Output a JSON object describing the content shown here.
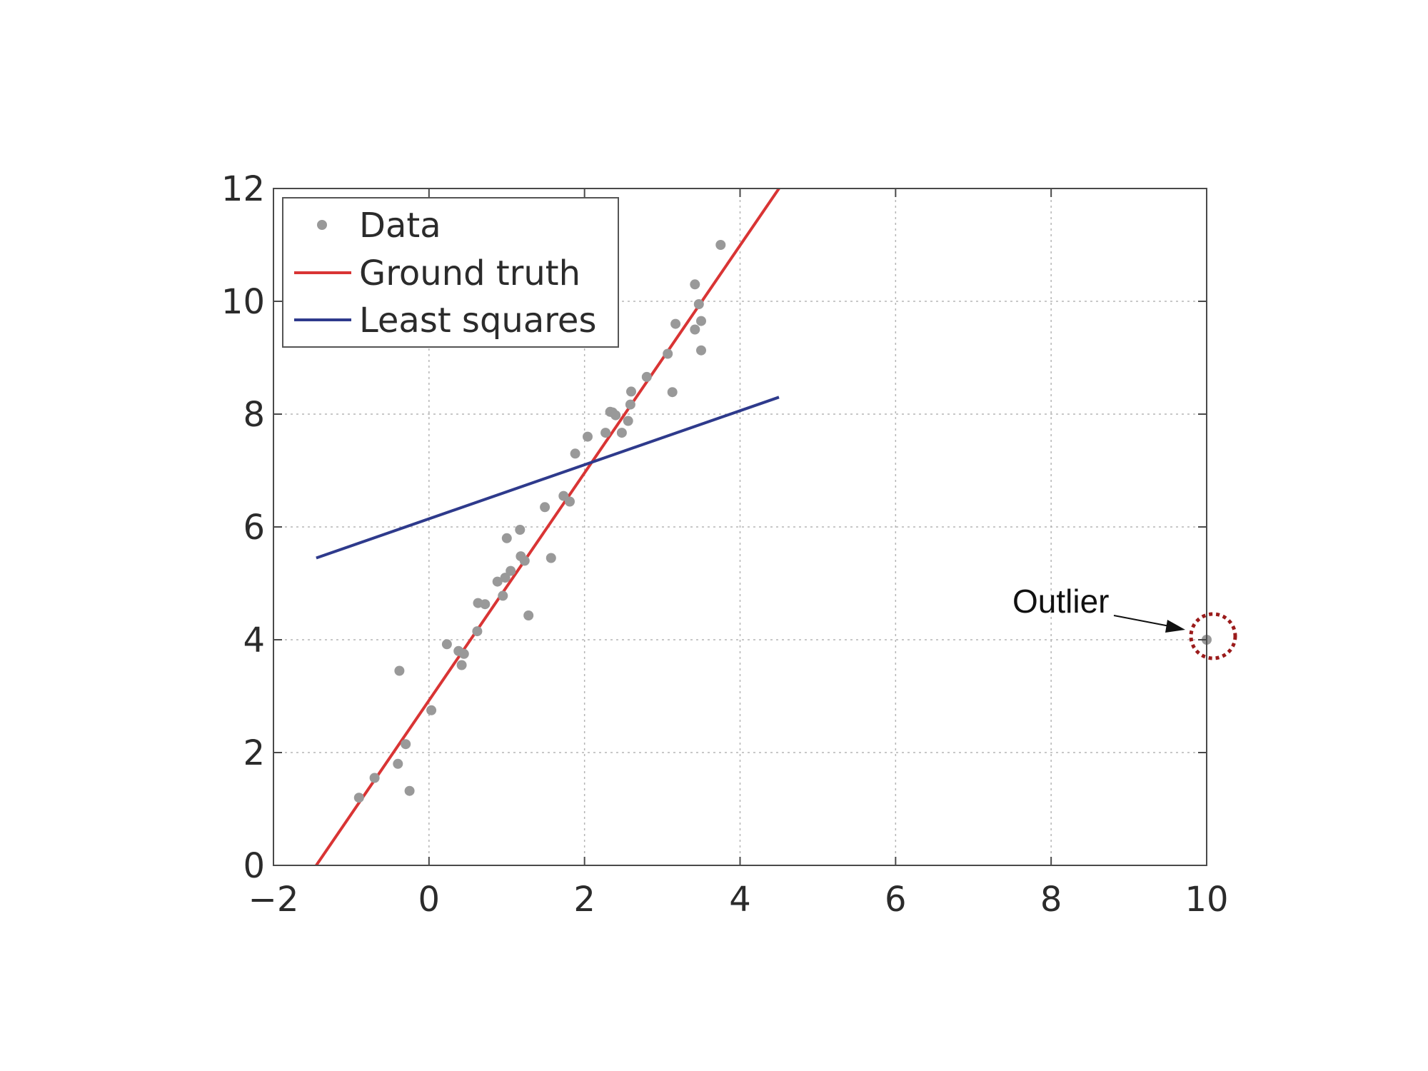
{
  "chart_data": {
    "type": "scatter",
    "title": "",
    "xlabel": "",
    "ylabel": "",
    "xlim": [
      -2,
      10
    ],
    "ylim": [
      0,
      12
    ],
    "x_ticks": [
      {
        "value": -2,
        "label": "−2"
      },
      {
        "value": 0,
        "label": "0"
      },
      {
        "value": 2,
        "label": "2"
      },
      {
        "value": 4,
        "label": "4"
      },
      {
        "value": 6,
        "label": "6"
      },
      {
        "value": 8,
        "label": "8"
      },
      {
        "value": 10,
        "label": "10"
      }
    ],
    "y_ticks": [
      {
        "value": 0,
        "label": "0"
      },
      {
        "value": 2,
        "label": "2"
      },
      {
        "value": 4,
        "label": "4"
      },
      {
        "value": 6,
        "label": "6"
      },
      {
        "value": 8,
        "label": "8"
      },
      {
        "value": 10,
        "label": "10"
      },
      {
        "value": 12,
        "label": "12"
      }
    ],
    "grid": true,
    "legend_position": "top-left",
    "series": [
      {
        "name": "Data",
        "kind": "scatter",
        "color": "#999999",
        "points": [
          [
            -0.9,
            1.2
          ],
          [
            -0.7,
            1.55
          ],
          [
            -0.4,
            1.8
          ],
          [
            -0.3,
            2.15
          ],
          [
            -0.25,
            1.32
          ],
          [
            -0.38,
            3.45
          ],
          [
            0.03,
            2.75
          ],
          [
            0.23,
            3.92
          ],
          [
            0.38,
            3.8
          ],
          [
            0.42,
            3.55
          ],
          [
            0.45,
            3.75
          ],
          [
            0.62,
            4.15
          ],
          [
            0.63,
            4.65
          ],
          [
            0.72,
            4.63
          ],
          [
            0.88,
            5.03
          ],
          [
            0.95,
            4.78
          ],
          [
            0.98,
            5.1
          ],
          [
            1.0,
            5.8
          ],
          [
            1.05,
            5.22
          ],
          [
            1.17,
            5.95
          ],
          [
            1.18,
            5.48
          ],
          [
            1.23,
            5.4
          ],
          [
            1.28,
            4.43
          ],
          [
            1.57,
            5.45
          ],
          [
            1.49,
            6.35
          ],
          [
            1.73,
            6.55
          ],
          [
            1.81,
            6.45
          ],
          [
            1.88,
            7.3
          ],
          [
            2.04,
            7.6
          ],
          [
            2.27,
            7.67
          ],
          [
            2.33,
            8.04
          ],
          [
            2.36,
            8.03
          ],
          [
            2.4,
            7.98
          ],
          [
            2.48,
            7.67
          ],
          [
            2.56,
            7.88
          ],
          [
            2.59,
            8.17
          ],
          [
            2.6,
            8.4
          ],
          [
            2.8,
            8.66
          ],
          [
            3.07,
            9.07
          ],
          [
            3.13,
            8.39
          ],
          [
            3.17,
            9.6
          ],
          [
            3.42,
            10.3
          ],
          [
            3.42,
            9.5
          ],
          [
            3.47,
            9.95
          ],
          [
            3.5,
            9.65
          ],
          [
            3.5,
            9.13
          ],
          [
            3.75,
            11.0
          ],
          [
            10.0,
            4.0
          ]
        ]
      },
      {
        "name": "Ground truth",
        "kind": "line",
        "color": "#d93434",
        "points": [
          [
            -1.45,
            0.0
          ],
          [
            4.5,
            12.0
          ]
        ]
      },
      {
        "name": "Least squares",
        "kind": "line",
        "color": "#2e3a8c",
        "points": [
          [
            -1.45,
            5.45
          ],
          [
            4.5,
            8.3
          ]
        ]
      }
    ],
    "annotations": [
      {
        "text": "Outlier",
        "target": [
          10.0,
          4.0
        ]
      }
    ]
  }
}
